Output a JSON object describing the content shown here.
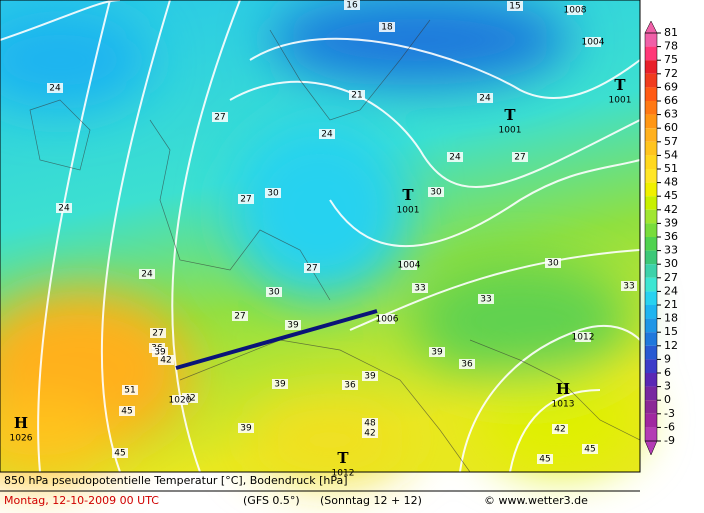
{
  "map": {
    "labels": [
      "16",
      "18",
      "15",
      "21",
      "24",
      "24",
      "24",
      "24",
      "24",
      "24",
      "27",
      "27",
      "27",
      "27",
      "27",
      "27",
      "30",
      "30",
      "30",
      "30",
      "33",
      "33",
      "33",
      "36",
      "36",
      "36",
      "39",
      "39",
      "39",
      "39",
      "39",
      "39",
      "42",
      "42",
      "42",
      "45",
      "45",
      "42",
      "45",
      "45",
      "48",
      "51",
      "1008",
      "1004",
      "1004",
      "1006",
      "1012",
      "1020"
    ],
    "centers": [
      {
        "symbol": "T",
        "pressure": 1001
      },
      {
        "symbol": "T",
        "pressure": 1001
      },
      {
        "symbol": "T",
        "pressure": 1001
      },
      {
        "symbol": "H",
        "pressure": 1013
      },
      {
        "symbol": "H",
        "pressure": 1026
      },
      {
        "symbol": "T",
        "pressure": 1012
      }
    ]
  },
  "colorbar": {
    "ticks": [
      81,
      78,
      75,
      72,
      69,
      66,
      63,
      60,
      57,
      54,
      51,
      48,
      45,
      42,
      39,
      36,
      33,
      30,
      27,
      24,
      21,
      18,
      15,
      12,
      9,
      6,
      3,
      0,
      -3,
      -6,
      -9
    ],
    "colors": [
      "#f060a8",
      "#ff3878",
      "#e8202a",
      "#f03c1e",
      "#ff5a14",
      "#ff7814",
      "#ff9614",
      "#ffb01e",
      "#ffc41e",
      "#ffd81e",
      "#ffe628",
      "#f0f000",
      "#c8f000",
      "#a0e632",
      "#78dc3c",
      "#50d250",
      "#3cc878",
      "#3cd2aa",
      "#3ce6d2",
      "#28d2f0",
      "#1eb4f0",
      "#1e96e6",
      "#1e78dc",
      "#285ad2",
      "#3c3cc8",
      "#5a28b4",
      "#7828a0",
      "#8c2896",
      "#a028a0",
      "#b43cb4"
    ]
  },
  "footer": {
    "title": "850 hPa pseudopotentielle Temperatur [°C], Bodendruck [hPa]",
    "date": "Montag, 12-10-2009  00 UTC",
    "model": "(GFS 0.5°)",
    "run": "(Sonntag 12 + 12)",
    "source": "© www.wetter3.de"
  }
}
